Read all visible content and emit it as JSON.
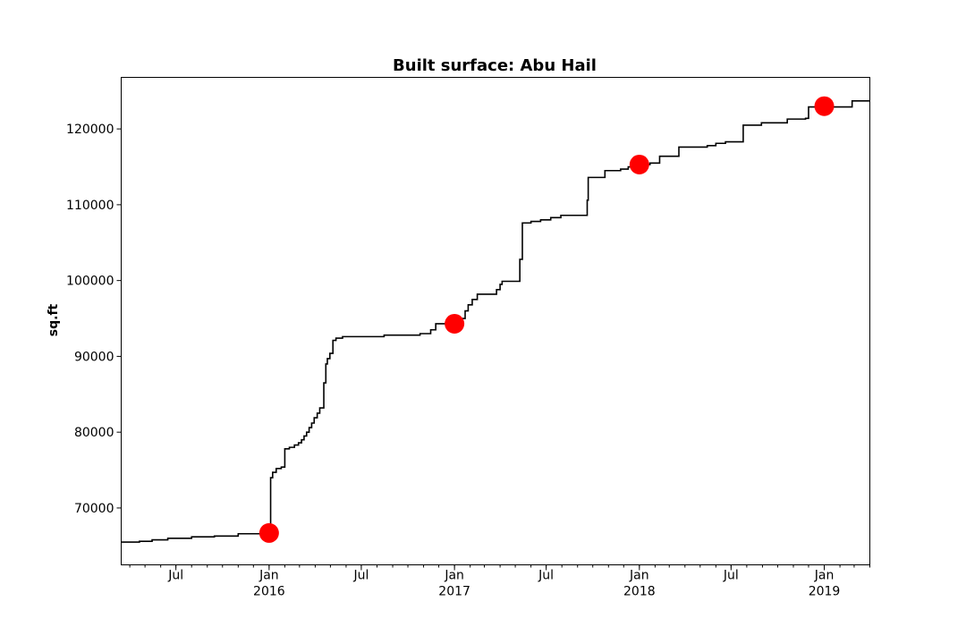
{
  "chart_data": {
    "type": "line",
    "title": "Built surface: Abu Hail",
    "xlabel": "",
    "ylabel": "sq.ft",
    "xlim": [
      "2015-03-15",
      "2019-04-01"
    ],
    "ylim": [
      62500,
      126800
    ],
    "grid": false,
    "y_ticks": [
      70000,
      80000,
      90000,
      100000,
      110000,
      120000
    ],
    "y_tick_labels": [
      "70000",
      "80000",
      "90000",
      "100000",
      "110000",
      "120000"
    ],
    "x_major_ticks": [
      {
        "date": "2015-07-01",
        "label": "Jul",
        "sublabel": ""
      },
      {
        "date": "2016-01-01",
        "label": "Jan",
        "sublabel": "2016"
      },
      {
        "date": "2016-07-01",
        "label": "Jul",
        "sublabel": ""
      },
      {
        "date": "2017-01-01",
        "label": "Jan",
        "sublabel": "2017"
      },
      {
        "date": "2017-07-01",
        "label": "Jul",
        "sublabel": ""
      },
      {
        "date": "2018-01-01",
        "label": "Jan",
        "sublabel": "2018"
      },
      {
        "date": "2018-07-01",
        "label": "Jul",
        "sublabel": ""
      },
      {
        "date": "2019-01-01",
        "label": "Jan",
        "sublabel": "2019"
      }
    ],
    "series": [
      {
        "color": "#000000",
        "style": "step",
        "points": [
          [
            "2015-03-15",
            65500
          ],
          [
            "2015-04-20",
            65600
          ],
          [
            "2015-05-15",
            65800
          ],
          [
            "2015-06-15",
            66000
          ],
          [
            "2015-08-01",
            66200
          ],
          [
            "2015-09-15",
            66300
          ],
          [
            "2015-11-01",
            66600
          ],
          [
            "2015-12-28",
            66700
          ],
          [
            "2016-01-02",
            67000
          ],
          [
            "2016-01-04",
            74000
          ],
          [
            "2016-01-08",
            74700
          ],
          [
            "2016-01-15",
            75200
          ],
          [
            "2016-01-25",
            75400
          ],
          [
            "2016-02-01",
            77800
          ],
          [
            "2016-02-10",
            78000
          ],
          [
            "2016-02-20",
            78300
          ],
          [
            "2016-02-28",
            78600
          ],
          [
            "2016-03-05",
            79000
          ],
          [
            "2016-03-10",
            79500
          ],
          [
            "2016-03-15",
            80000
          ],
          [
            "2016-03-20",
            80600
          ],
          [
            "2016-03-25",
            81200
          ],
          [
            "2016-03-30",
            81900
          ],
          [
            "2016-04-05",
            82500
          ],
          [
            "2016-04-10",
            83200
          ],
          [
            "2016-04-18",
            86500
          ],
          [
            "2016-04-22",
            89000
          ],
          [
            "2016-04-25",
            89700
          ],
          [
            "2016-04-30",
            90400
          ],
          [
            "2016-05-06",
            92100
          ],
          [
            "2016-05-12",
            92400
          ],
          [
            "2016-05-25",
            92600
          ],
          [
            "2016-08-15",
            92800
          ],
          [
            "2016-10-25",
            93000
          ],
          [
            "2016-11-15",
            93500
          ],
          [
            "2016-11-25",
            94300
          ],
          [
            "2017-01-15",
            95000
          ],
          [
            "2017-01-22",
            96000
          ],
          [
            "2017-01-28",
            96800
          ],
          [
            "2017-02-05",
            97500
          ],
          [
            "2017-02-15",
            98200
          ],
          [
            "2017-03-25",
            98800
          ],
          [
            "2017-04-01",
            99500
          ],
          [
            "2017-04-05",
            99900
          ],
          [
            "2017-05-10",
            102800
          ],
          [
            "2017-05-15",
            107600
          ],
          [
            "2017-06-01",
            107800
          ],
          [
            "2017-06-20",
            108000
          ],
          [
            "2017-07-10",
            108300
          ],
          [
            "2017-07-30",
            108600
          ],
          [
            "2017-09-20",
            110600
          ],
          [
            "2017-09-22",
            113600
          ],
          [
            "2017-10-25",
            114500
          ],
          [
            "2017-11-25",
            114700
          ],
          [
            "2017-12-10",
            115000
          ],
          [
            "2018-01-10",
            115300
          ],
          [
            "2018-01-22",
            115500
          ],
          [
            "2018-02-10",
            116400
          ],
          [
            "2018-03-20",
            117600
          ],
          [
            "2018-05-15",
            117800
          ],
          [
            "2018-06-01",
            118100
          ],
          [
            "2018-06-20",
            118300
          ],
          [
            "2018-07-25",
            120500
          ],
          [
            "2018-08-30",
            120800
          ],
          [
            "2018-10-20",
            121300
          ],
          [
            "2018-11-25",
            121400
          ],
          [
            "2018-12-01",
            122900
          ],
          [
            "2019-02-25",
            123700
          ],
          [
            "2019-04-01",
            123700
          ]
        ]
      },
      {
        "type": "scatter",
        "color": "#ff0000",
        "points": [
          [
            "2016-01-01",
            66700
          ],
          [
            "2017-01-01",
            94300
          ],
          [
            "2018-01-01",
            115300
          ],
          [
            "2019-01-01",
            123000
          ]
        ]
      }
    ]
  }
}
